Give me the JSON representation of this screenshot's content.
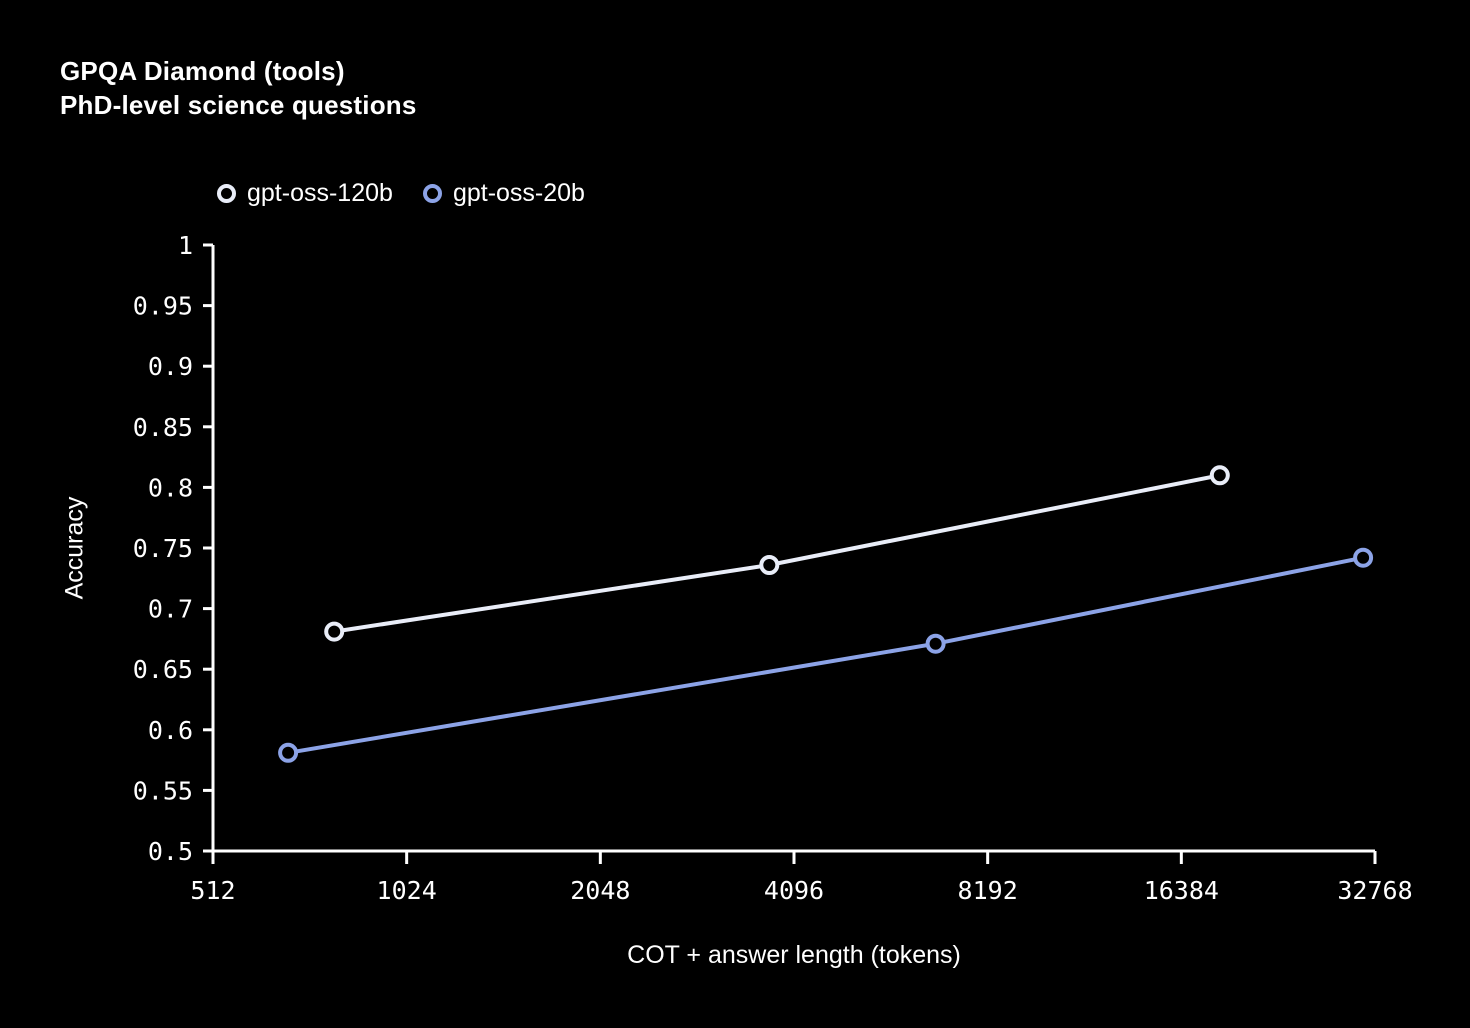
{
  "title": {
    "line1": "GPQA Diamond (tools)",
    "line2": "PhD-level science questions"
  },
  "chart_data": {
    "type": "line",
    "title": "GPQA Diamond (tools)",
    "subtitle": "PhD-level science questions",
    "xlabel": "COT + answer length (tokens)",
    "ylabel": "Accuracy",
    "x_scale": "log2",
    "xlim": [
      512,
      32768
    ],
    "ylim": [
      0.5,
      1.0
    ],
    "x_ticks": [
      512,
      1024,
      2048,
      4096,
      8192,
      16384,
      32768
    ],
    "y_ticks": [
      0.5,
      0.55,
      0.6,
      0.65,
      0.7,
      0.75,
      0.8,
      0.85,
      0.9,
      0.95,
      1
    ],
    "grid": false,
    "legend_position": "top-left",
    "marker": "open-circle",
    "background_color": "#000000",
    "text_color": "#ffffff",
    "axis_color": "#ffffff",
    "series": [
      {
        "name": "gpt-oss-120b",
        "color": "#e9edf8",
        "points": [
          {
            "x": 790,
            "y": 0.681
          },
          {
            "x": 3750,
            "y": 0.736
          },
          {
            "x": 18800,
            "y": 0.81
          }
        ]
      },
      {
        "name": "gpt-oss-20b",
        "color": "#8ca3e7",
        "points": [
          {
            "x": 670,
            "y": 0.581
          },
          {
            "x": 6800,
            "y": 0.671
          },
          {
            "x": 31400,
            "y": 0.742
          }
        ]
      }
    ]
  }
}
